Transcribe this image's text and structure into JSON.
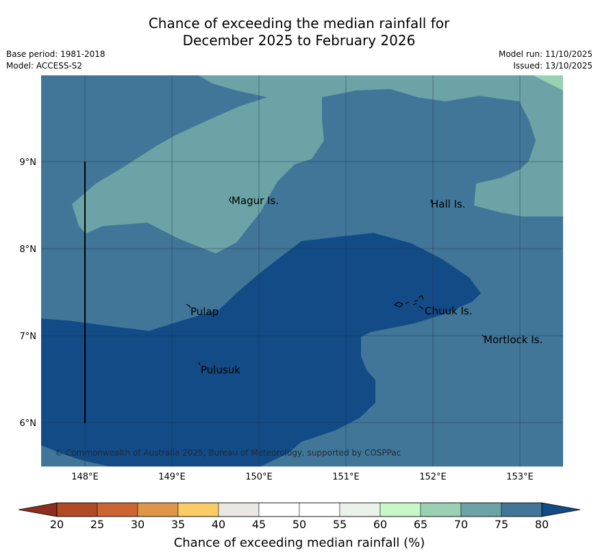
{
  "title": {
    "line1": "Chance of exceeding the median rainfall for",
    "line2": "December 2025 to February 2026"
  },
  "meta": {
    "base_period": "Base period: 1981-2018",
    "model": "Model: ACCESS-S2",
    "model_run": "Model run: 11/10/2025",
    "issued": "Issued: 13/10/2025"
  },
  "map": {
    "lon_ticks": [
      "148°E",
      "149°E",
      "150°E",
      "151°E",
      "152°E",
      "153°E"
    ],
    "lat_ticks": [
      "9°N",
      "8°N",
      "7°N",
      "6°N"
    ],
    "places": {
      "magur": "Magur Is.",
      "hall": "Hall Is.",
      "pulap": "Pulap",
      "chuuk": "Chuuk Is.",
      "mortlock": "Mortlock Is.",
      "pulusuk": "Pulusuk"
    },
    "copyright": "© Commonwealth of Australia 2025, Bureau of Meteorology, supported by COSPPac"
  },
  "colorbar": {
    "title": "Chance of exceeding median rainfall (%)",
    "labels": [
      "20",
      "25",
      "30",
      "35",
      "40",
      "45",
      "50",
      "55",
      "60",
      "65",
      "70",
      "75",
      "80"
    ],
    "colors": [
      "#b24a25",
      "#cc6531",
      "#e09649",
      "#fdcb64",
      "#ebe8e4",
      "#ffffff",
      "#ffffff",
      "#eaf3e9",
      "#c8f8c8",
      "#99d1b5",
      "#6ba3a6",
      "#417698"
    ],
    "under_color": "#8d2f1c",
    "over_color": "#124b86"
  },
  "legend_colors": {
    "c65_70": "#99d1b5",
    "c70_75": "#6ba3a6",
    "c75_80": "#417698",
    "c80_plus": "#124b86"
  }
}
